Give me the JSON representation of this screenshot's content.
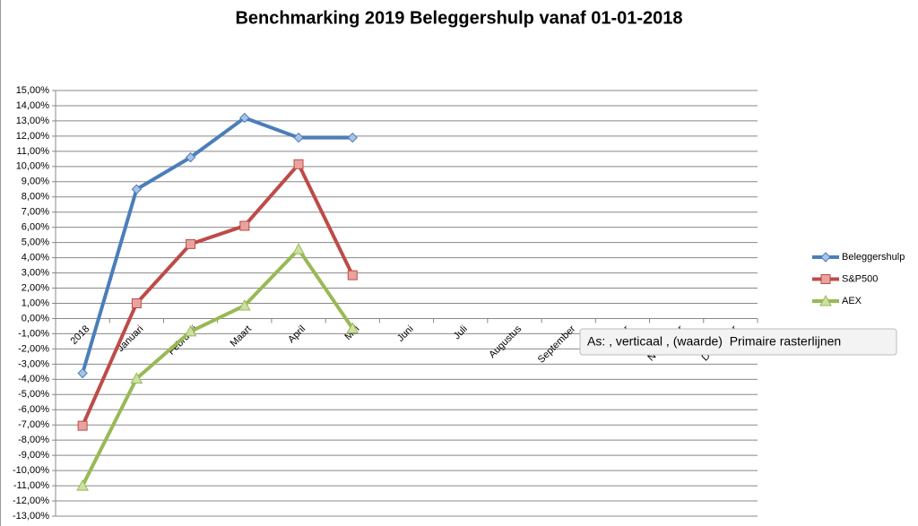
{
  "chart_data": {
    "type": "line",
    "title": "Benchmarking 2019 Beleggershulp vanaf 01-01-2018",
    "categories": [
      "2018",
      "Januari",
      "Februari",
      "Maart",
      "April",
      "Mei",
      "Juni",
      "Juli",
      "Augustus",
      "September",
      "Oktober",
      "November",
      "December"
    ],
    "series": [
      {
        "name": "Beleggershulp",
        "color": "#4a7ebb",
        "marker": "diamond",
        "values": [
          -3.6,
          8.5,
          10.6,
          13.2,
          11.9,
          11.9,
          null,
          null,
          null,
          null,
          null,
          null,
          null
        ]
      },
      {
        "name": "S&P500",
        "color": "#be4b48",
        "marker": "square",
        "values": [
          -7.05,
          1.0,
          4.9,
          6.1,
          10.15,
          2.85,
          null,
          null,
          null,
          null,
          null,
          null,
          null
        ]
      },
      {
        "name": "AEX",
        "color": "#98b954",
        "marker": "triangle",
        "values": [
          -11.0,
          -3.95,
          -0.85,
          0.85,
          4.55,
          -0.65,
          null,
          null,
          null,
          null,
          null,
          null,
          null
        ]
      }
    ],
    "ylim": [
      -13,
      15
    ],
    "yticks": [
      {
        "value": 15,
        "label": "15,00%"
      },
      {
        "value": 14,
        "label": "14,00%"
      },
      {
        "value": 13,
        "label": "13,00%"
      },
      {
        "value": 12,
        "label": "12,00%"
      },
      {
        "value": 11,
        "label": "11,00%"
      },
      {
        "value": 10,
        "label": "10,00%"
      },
      {
        "value": 9,
        "label": "9,00%"
      },
      {
        "value": 8,
        "label": "8,00%"
      },
      {
        "value": 7,
        "label": "7,00%"
      },
      {
        "value": 6,
        "label": "6,00%"
      },
      {
        "value": 5,
        "label": "5,00%"
      },
      {
        "value": 4,
        "label": "4,00%"
      },
      {
        "value": 3,
        "label": "3,00%"
      },
      {
        "value": 2,
        "label": "2,00%"
      },
      {
        "value": 1,
        "label": "1,00%"
      },
      {
        "value": 0,
        "label": "0,00%"
      },
      {
        "value": -1,
        "label": "-1,00%"
      },
      {
        "value": -2,
        "label": "-2,00%"
      },
      {
        "value": -3,
        "label": "-3,00%"
      },
      {
        "value": -4,
        "label": "-4,00%"
      },
      {
        "value": -5,
        "label": "-5,00%"
      },
      {
        "value": -6,
        "label": "-6,00%"
      },
      {
        "value": -7,
        "label": "-7,00%"
      },
      {
        "value": -8,
        "label": "-8,00%"
      },
      {
        "value": -9,
        "label": "-9,00%"
      },
      {
        "value": -10,
        "label": "-10,00%"
      },
      {
        "value": -11,
        "label": "-11,00%"
      },
      {
        "value": -12,
        "label": "-12,00%"
      },
      {
        "value": -13,
        "label": "-13,00%"
      }
    ],
    "grid": true,
    "legend": "right",
    "tooltip": "As: , verticaal , (waarde)  Primaire rasterlijnen"
  }
}
